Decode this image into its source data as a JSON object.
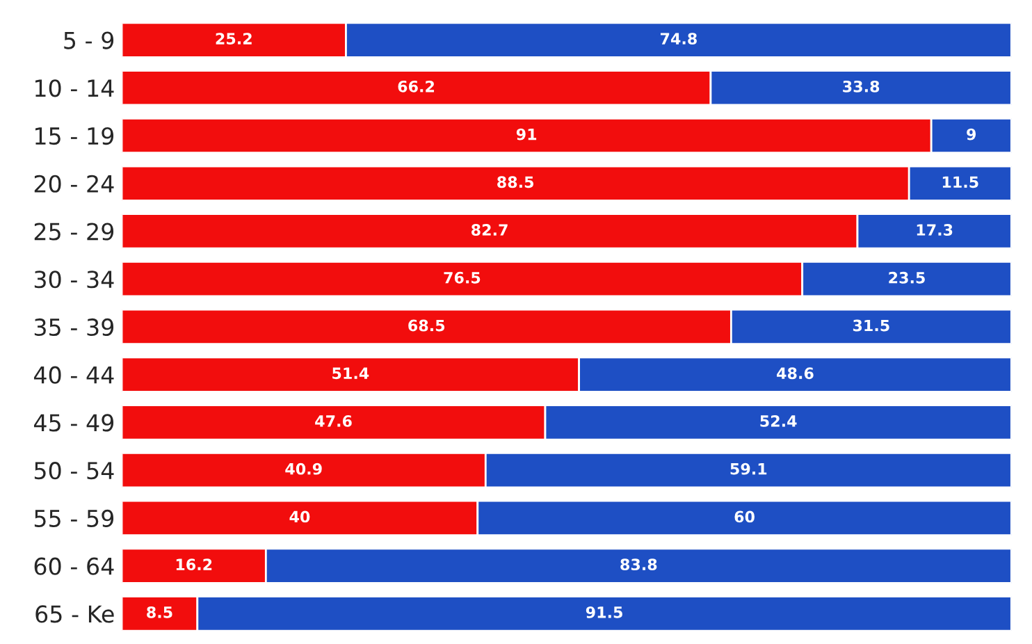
{
  "chart_data": {
    "type": "bar",
    "orientation": "horizontal",
    "stacked": true,
    "data_labels": true,
    "tick_labels": "y",
    "grid": false,
    "legend": false,
    "xlim": [
      0,
      100
    ],
    "categories": [
      "5 - 9",
      "10 - 14",
      "15 - 19",
      "20 - 24",
      "25 - 29",
      "30 - 34",
      "35 - 39",
      "40 - 44",
      "45 - 49",
      "50 - 54",
      "55 - 59",
      "60 - 64",
      "65 - Ke"
    ],
    "series": [
      {
        "color": "#f20d0d",
        "values": [
          25.2,
          66.2,
          91,
          88.5,
          82.7,
          76.5,
          68.5,
          51.4,
          47.6,
          40.9,
          40,
          16.2,
          8.5
        ]
      },
      {
        "color": "#1e4fc4",
        "values": [
          74.8,
          33.8,
          9,
          11.5,
          17.3,
          23.5,
          31.5,
          48.6,
          52.4,
          59.1,
          60,
          83.8,
          91.5
        ]
      }
    ]
  }
}
